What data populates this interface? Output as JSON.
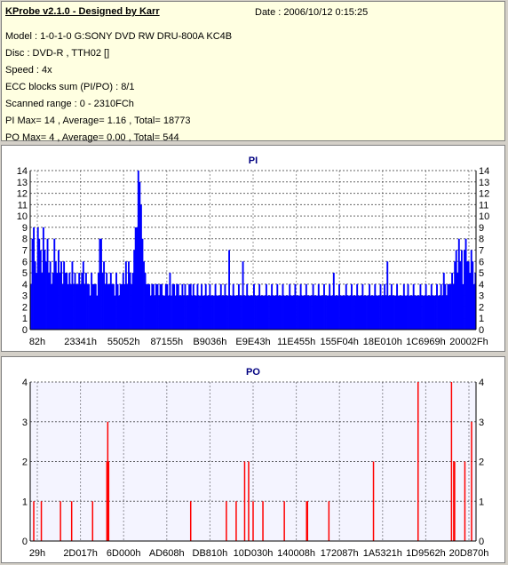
{
  "info": {
    "title": "KProbe v2.1.0 - Designed by Karr",
    "date": "Date : 2006/10/12 0:15:25",
    "lines": [
      "Model : 1-0-1-0 G:SONY    DVD RW DRU-800A  KC4B",
      "Disc : DVD-R , TTH02 []",
      "Speed : 4x",
      "ECC blocks sum (PI/PO) : 8/1",
      "Scanned range : 0 - 2310FCh",
      "PI Max= 14 , Average= 1.16 , Total= 18773",
      "PO Max= 4 , Average= 0.00 , Total= 544"
    ]
  },
  "chart_data": [
    {
      "type": "bar",
      "title": "PI",
      "ylim": [
        0,
        14
      ],
      "yticks": [
        0,
        1,
        2,
        3,
        4,
        5,
        6,
        7,
        8,
        9,
        10,
        11,
        12,
        13,
        14
      ],
      "xticks": [
        "82h",
        "23341h",
        "55052h",
        "87155h",
        "B9036h",
        "E9E43h",
        "11E455h",
        "155F04h",
        "18E010h",
        "1C6969h",
        "20002Fh"
      ],
      "grid": true,
      "color": "#0000ff",
      "values": [
        4,
        8,
        9,
        6,
        5,
        9,
        8,
        7,
        5,
        9,
        7,
        6,
        8,
        5,
        6,
        4,
        5,
        8,
        6,
        5,
        7,
        5,
        6,
        4,
        6,
        5,
        5,
        4,
        5,
        4,
        6,
        4,
        5,
        4,
        4,
        5,
        4,
        5,
        6,
        4,
        5,
        4,
        4,
        3,
        5,
        4,
        4,
        4,
        3,
        5,
        8,
        8,
        5,
        6,
        4,
        5,
        4,
        4,
        5,
        4,
        4,
        3,
        5,
        4,
        3,
        4,
        4,
        5,
        4,
        6,
        4,
        6,
        5,
        4,
        5,
        7,
        9,
        9,
        14,
        13,
        11,
        8,
        6,
        5,
        4,
        4,
        4,
        3,
        4,
        4,
        3,
        4,
        4,
        3,
        4,
        4,
        3,
        3,
        4,
        4,
        3,
        5,
        3,
        4,
        4,
        3,
        4,
        4,
        3,
        3,
        4,
        3,
        4,
        3,
        3,
        4,
        4,
        3,
        4,
        3,
        3,
        4,
        3,
        3,
        4,
        3,
        3,
        4,
        3,
        3,
        4,
        3,
        3,
        3,
        4,
        3,
        3,
        3,
        4,
        3,
        3,
        4,
        3,
        3,
        7,
        3,
        3,
        4,
        3,
        3,
        3,
        4,
        3,
        3,
        6,
        3,
        3,
        4,
        3,
        3,
        3,
        3,
        4,
        3,
        3,
        3,
        4,
        3,
        3,
        3,
        3,
        4,
        3,
        3,
        3,
        4,
        3,
        3,
        3,
        4,
        3,
        3,
        3,
        4,
        3,
        3,
        3,
        3,
        4,
        3,
        3,
        3,
        4,
        3,
        3,
        3,
        4,
        3,
        3,
        3,
        4,
        3,
        3,
        3,
        3,
        4,
        3,
        3,
        3,
        4,
        3,
        3,
        3,
        4,
        3,
        3,
        3,
        4,
        3,
        3,
        5,
        3,
        3,
        3,
        4,
        3,
        3,
        3,
        3,
        4,
        3,
        3,
        3,
        4,
        3,
        3,
        3,
        4,
        3,
        3,
        3,
        4,
        3,
        3,
        3,
        3,
        4,
        3,
        3,
        3,
        4,
        3,
        3,
        3,
        4,
        3,
        3,
        4,
        3,
        6,
        3,
        3,
        4,
        3,
        3,
        3,
        4,
        3,
        3,
        3,
        3,
        4,
        3,
        3,
        4,
        3,
        3,
        3,
        4,
        3,
        3,
        3,
        3,
        4,
        3,
        3,
        3,
        4,
        3,
        3,
        3,
        4,
        3,
        3,
        3,
        4,
        3,
        3,
        4,
        3,
        5,
        4,
        3,
        4,
        4,
        4,
        5,
        4,
        6,
        7,
        5,
        8,
        6,
        7,
        4,
        7,
        8,
        6,
        6,
        5,
        7,
        6,
        4,
        5
      ]
    },
    {
      "type": "bar",
      "title": "PO",
      "ylim": [
        0,
        4
      ],
      "yticks": [
        0,
        1,
        2,
        3,
        4
      ],
      "xticks": [
        "29h",
        "2D017h",
        "6D000h",
        "AD608h",
        "DB810h",
        "10D030h",
        "140008h",
        "172087h",
        "1A5321h",
        "1D9562h",
        "20D870h"
      ],
      "grid": true,
      "color": "#ff0000",
      "spikes": [
        {
          "x": 0.008,
          "v": 1
        },
        {
          "x": 0.025,
          "v": 1
        },
        {
          "x": 0.068,
          "v": 1
        },
        {
          "x": 0.093,
          "v": 1
        },
        {
          "x": 0.14,
          "v": 1
        },
        {
          "x": 0.172,
          "v": 2
        },
        {
          "x": 0.174,
          "v": 3
        },
        {
          "x": 0.176,
          "v": 2
        },
        {
          "x": 0.36,
          "v": 1
        },
        {
          "x": 0.44,
          "v": 1
        },
        {
          "x": 0.462,
          "v": 1
        },
        {
          "x": 0.481,
          "v": 2
        },
        {
          "x": 0.49,
          "v": 2
        },
        {
          "x": 0.5,
          "v": 1
        },
        {
          "x": 0.522,
          "v": 1
        },
        {
          "x": 0.57,
          "v": 1
        },
        {
          "x": 0.62,
          "v": 1
        },
        {
          "x": 0.622,
          "v": 1
        },
        {
          "x": 0.67,
          "v": 1
        },
        {
          "x": 0.77,
          "v": 2
        },
        {
          "x": 0.87,
          "v": 4
        },
        {
          "x": 0.945,
          "v": 4
        },
        {
          "x": 0.95,
          "v": 2
        },
        {
          "x": 0.952,
          "v": 2
        },
        {
          "x": 0.975,
          "v": 2
        },
        {
          "x": 0.99,
          "v": 3
        }
      ]
    }
  ]
}
